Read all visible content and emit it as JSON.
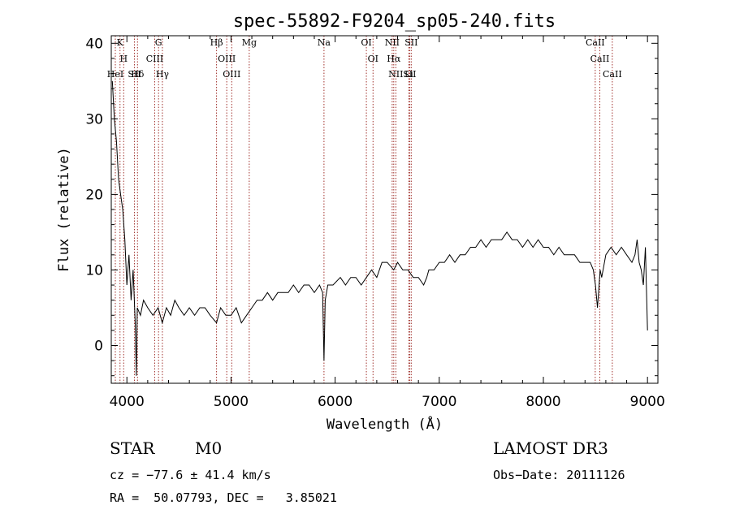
{
  "chart_data": {
    "type": "line",
    "title": "spec-55892-F9204_sp05-240.fits",
    "xlabel": "Wavelength (Å)",
    "ylabel": "Flux (relative)",
    "xlim": [
      3850,
      9100
    ],
    "ylim": [
      -5,
      41
    ],
    "xticks": [
      4000,
      5000,
      6000,
      7000,
      8000,
      9000
    ],
    "yticks": [
      0,
      10,
      20,
      30,
      40
    ],
    "series": [
      {
        "name": "spectrum",
        "x": [
          3860,
          3880,
          3900,
          3920,
          3940,
          3960,
          3980,
          4000,
          4020,
          4040,
          4060,
          4080,
          4090,
          4100,
          4130,
          4160,
          4200,
          4250,
          4300,
          4340,
          4380,
          4420,
          4460,
          4500,
          4550,
          4600,
          4650,
          4700,
          4750,
          4800,
          4861,
          4900,
          4950,
          5000,
          5050,
          5100,
          5150,
          5200,
          5250,
          5300,
          5350,
          5400,
          5450,
          5500,
          5550,
          5600,
          5650,
          5700,
          5750,
          5800,
          5850,
          5880,
          5893,
          5905,
          5930,
          5980,
          6050,
          6100,
          6150,
          6200,
          6250,
          6300,
          6350,
          6400,
          6450,
          6500,
          6563,
          6600,
          6650,
          6700,
          6750,
          6800,
          6850,
          6880,
          6900,
          6950,
          7000,
          7050,
          7100,
          7150,
          7200,
          7250,
          7300,
          7350,
          7400,
          7450,
          7500,
          7550,
          7600,
          7650,
          7700,
          7750,
          7800,
          7850,
          7900,
          7950,
          8000,
          8050,
          8100,
          8150,
          8200,
          8250,
          8300,
          8350,
          8400,
          8450,
          8480,
          8500,
          8520,
          8545,
          8560,
          8600,
          8650,
          8700,
          8750,
          8800,
          8850,
          8880,
          8900,
          8920,
          8940,
          8960,
          8980,
          9000
        ],
        "values": [
          35,
          30,
          27,
          22,
          20,
          18,
          14,
          8,
          12,
          6,
          10,
          3,
          -4,
          5,
          4,
          6,
          5,
          4,
          5,
          3,
          5,
          4,
          6,
          5,
          4,
          5,
          4,
          5,
          5,
          4,
          3,
          5,
          4,
          4,
          5,
          3,
          4,
          5,
          6,
          6,
          7,
          6,
          7,
          7,
          7,
          8,
          7,
          8,
          8,
          7,
          8,
          7,
          -2,
          6,
          8,
          8,
          9,
          8,
          9,
          9,
          8,
          9,
          10,
          9,
          11,
          11,
          10,
          11,
          10,
          10,
          9,
          9,
          8,
          9,
          10,
          10,
          11,
          11,
          12,
          11,
          12,
          12,
          13,
          13,
          14,
          13,
          14,
          14,
          14,
          15,
          14,
          14,
          13,
          14,
          13,
          14,
          13,
          13,
          12,
          13,
          12,
          12,
          12,
          11,
          11,
          11,
          10,
          8,
          5,
          10,
          9,
          12,
          13,
          12,
          13,
          12,
          11,
          12,
          14,
          11,
          10,
          8,
          13,
          2
        ]
      }
    ],
    "lines": [
      {
        "wl": 3934,
        "label": "K"
      },
      {
        "wl": 3969,
        "label": "H"
      },
      {
        "wl": 3889,
        "label": "HeI"
      },
      {
        "wl": 4072,
        "label": "SII"
      },
      {
        "wl": 4102,
        "label": "Hδ"
      },
      {
        "wl": 4304,
        "label": "G"
      },
      {
        "wl": 4267,
        "label": "CIII"
      },
      {
        "wl": 4341,
        "label": "Hγ"
      },
      {
        "wl": 4861,
        "label": "Hβ"
      },
      {
        "wl": 4959,
        "label": "OIII"
      },
      {
        "wl": 5007,
        "label": "OIII"
      },
      {
        "wl": 5175,
        "label": "Mg"
      },
      {
        "wl": 5893,
        "label": "Na"
      },
      {
        "wl": 6300,
        "label": "OI"
      },
      {
        "wl": 6364,
        "label": "OI"
      },
      {
        "wl": 6548,
        "label": "NII"
      },
      {
        "wl": 6563,
        "label": "Hα"
      },
      {
        "wl": 6583,
        "label": "NII"
      },
      {
        "wl": 6708,
        "label": "Li"
      },
      {
        "wl": 6716,
        "label": "SII"
      },
      {
        "wl": 6731,
        "label": "SII"
      },
      {
        "wl": 8498,
        "label": "CaII"
      },
      {
        "wl": 8542,
        "label": "CaII"
      },
      {
        "wl": 8662,
        "label": "CaII"
      }
    ]
  },
  "info": {
    "class": "STAR",
    "subclass": "M0",
    "survey": "LAMOST DR3",
    "cz": "cz = −77.6 ± 41.4 km/s",
    "obs_date": "Obs−Date: 20111126",
    "radec": "RA =  50.07793, DEC =   3.85021"
  }
}
